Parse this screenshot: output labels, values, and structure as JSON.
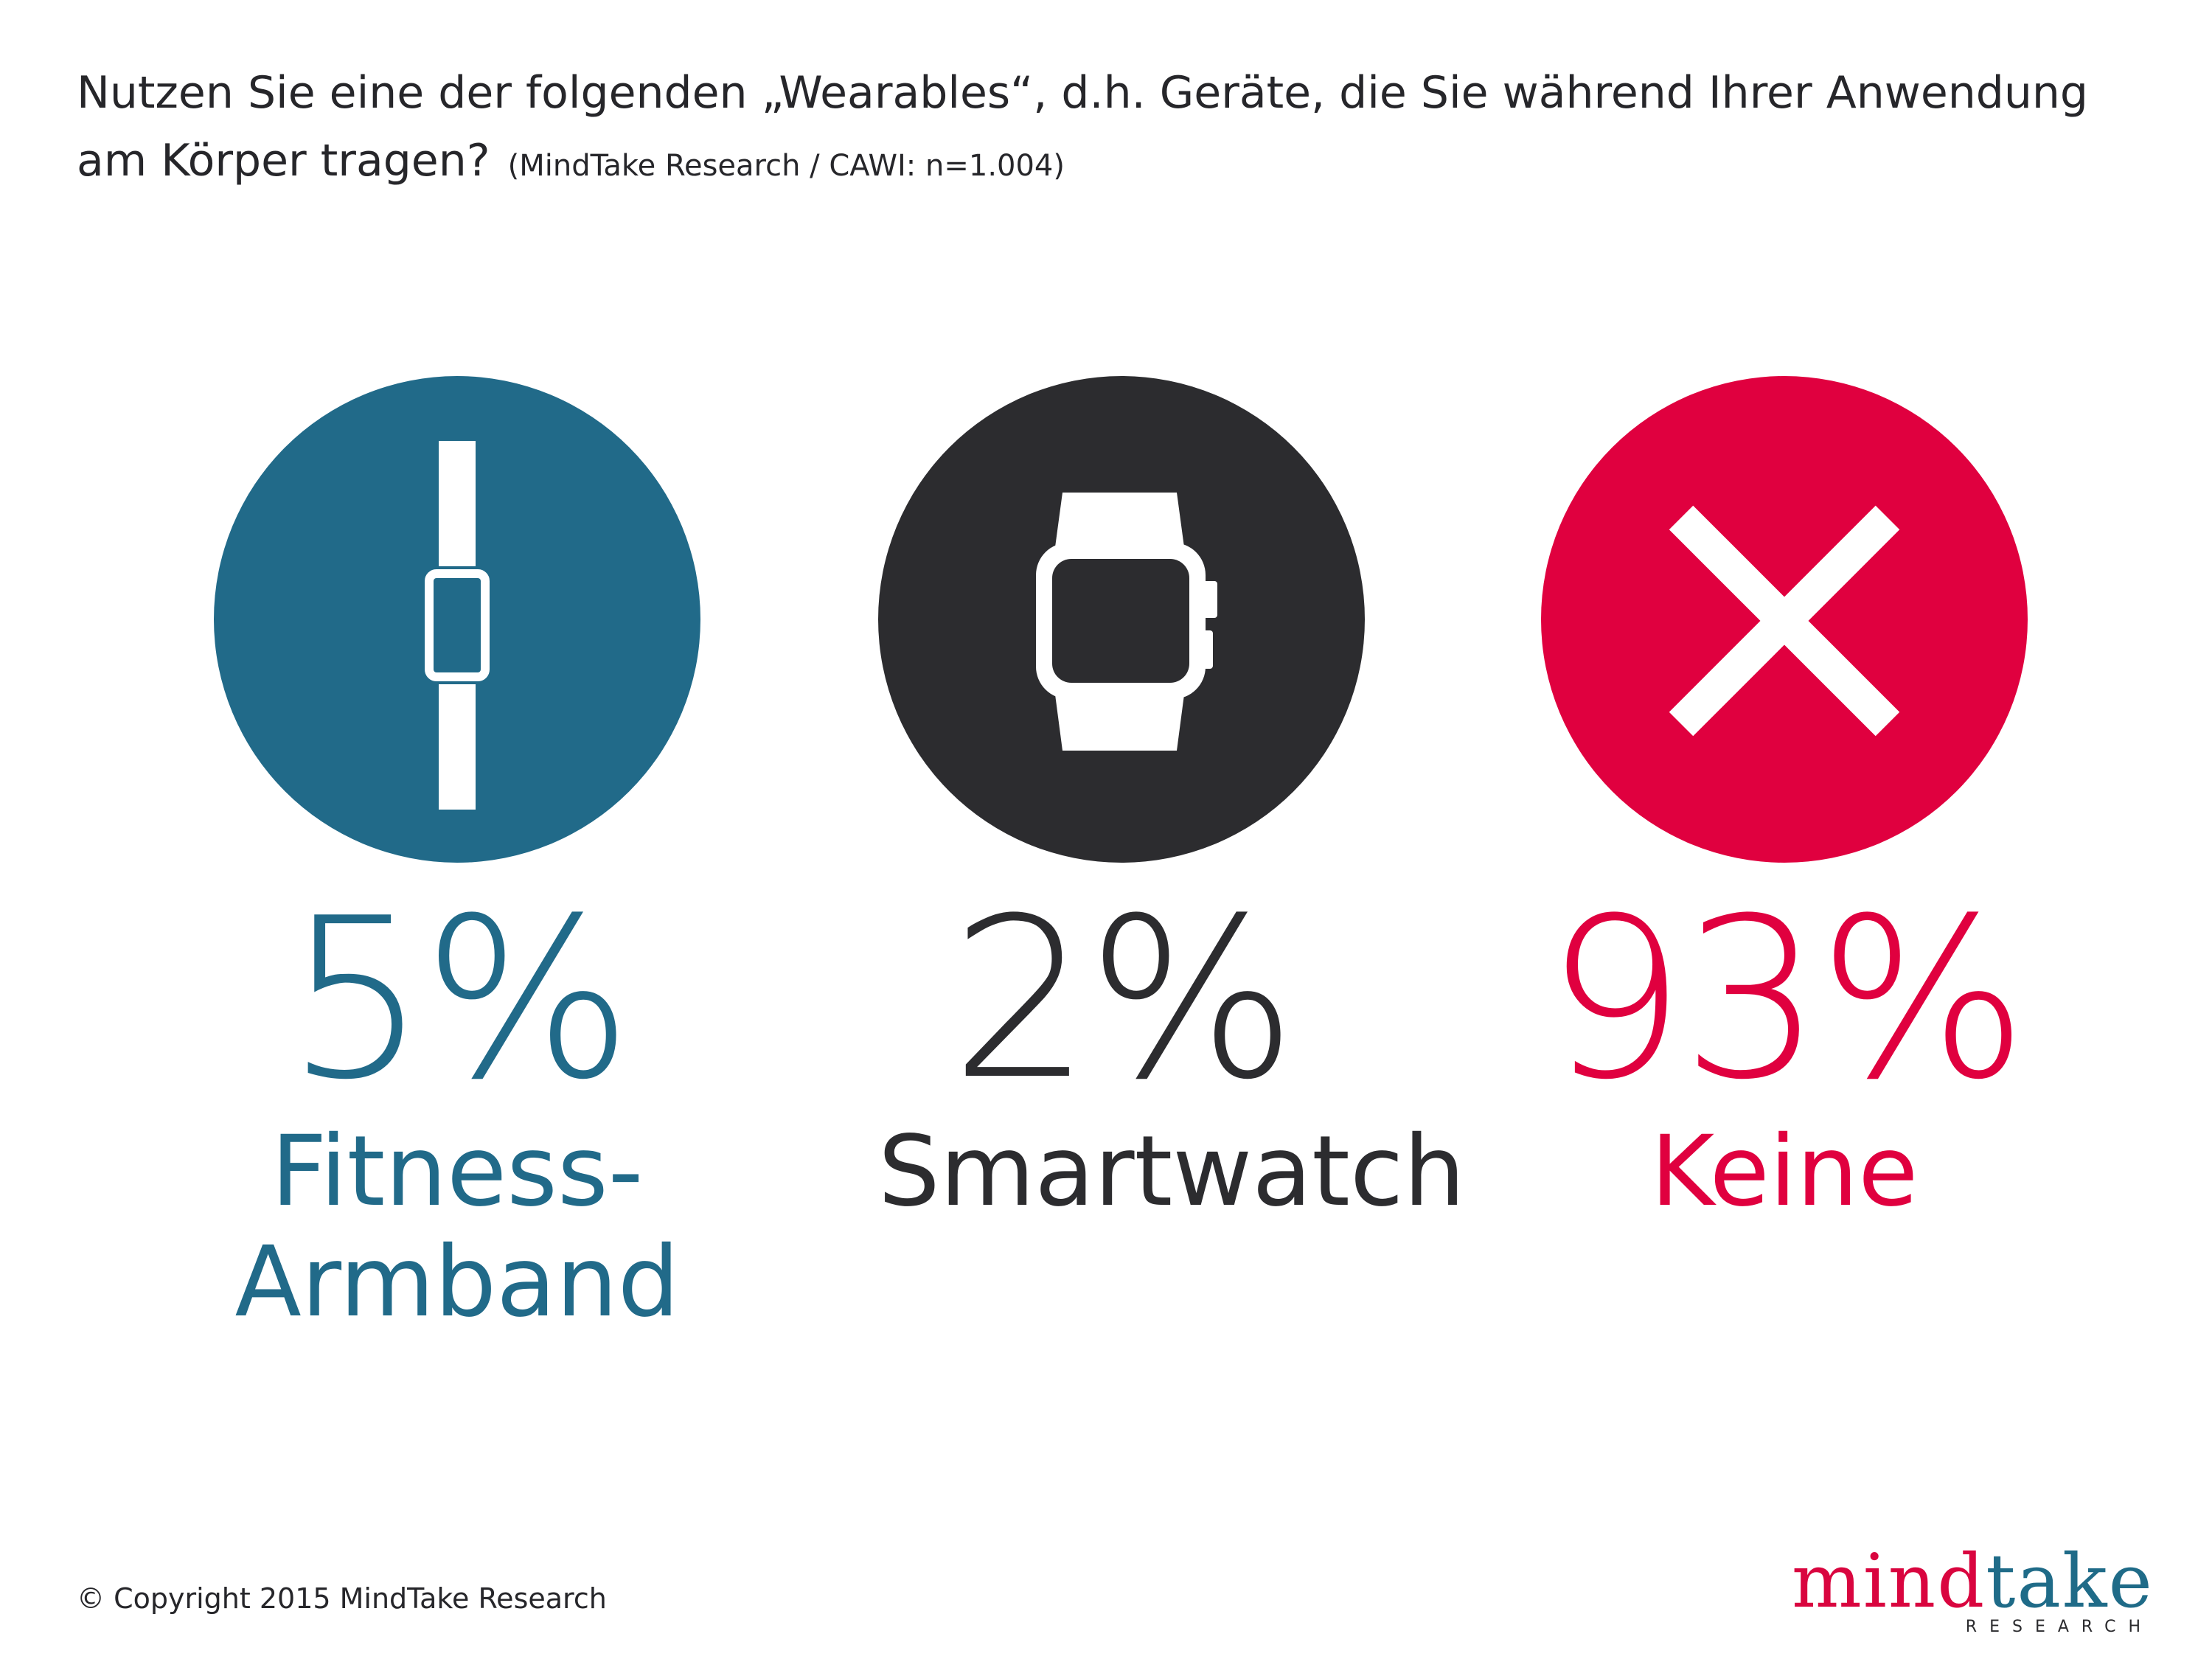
{
  "header": {
    "question_line1": "Nutzen Sie eine der folgenden „Wearables“, d.h. Geräte, die Sie während Ihrer Anwendung",
    "question_line2": "am Körper tragen?",
    "source": "(MindTake Research / CAWI: n=1.004)"
  },
  "chart_data": {
    "type": "infographic",
    "title": "Nutzen Sie eine der folgenden „Wearables“, d.h. Geräte, die Sie während Ihrer Anwendung am Körper tragen?",
    "subtitle": "(MindTake Research / CAWI: n=1.004)",
    "unit": "%",
    "items": [
      {
        "category": "Fitness-Armband",
        "value": 5,
        "value_label": "5%",
        "label_line1": "Fitness-",
        "label_line2": "Armband",
        "icon": "fitness-band-icon",
        "color": "#216a89"
      },
      {
        "category": "Smartwatch",
        "value": 2,
        "value_label": "2%",
        "label_line1": "Smartwatch",
        "label_line2": "",
        "icon": "smartwatch-icon",
        "color": "#2c2c2f"
      },
      {
        "category": "Keine",
        "value": 93,
        "value_label": "93%",
        "label_line1": "Keine",
        "label_line2": "",
        "icon": "cross-icon",
        "color": "#e0003f"
      }
    ]
  },
  "footer": {
    "copyright": "© Copyright 2015 MindTake Research",
    "logo_part1": "mind",
    "logo_part2": "take",
    "logo_sub": "RESEARCH"
  }
}
